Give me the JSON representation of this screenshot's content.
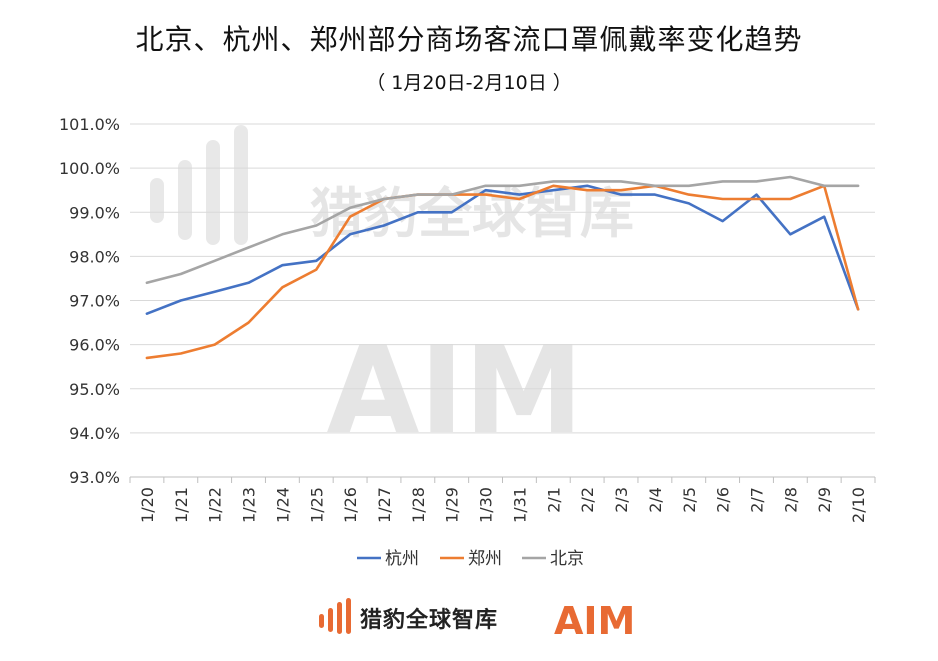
{
  "header": {
    "title": "北京、杭州、郑州部分商场客流口罩佩戴率变化趋势",
    "subtitle": "（ 1月20日-2月10日 ）"
  },
  "watermark": {
    "brand_cn": "猎豹全球智库",
    "brand_en": "AIM"
  },
  "footer": {
    "brand_cn": "猎豹全球智库",
    "brand_en": "AIM",
    "logo_icon": "cheetah-bars-icon"
  },
  "colors": {
    "hangzhou": "#4472C4",
    "zhengzhou": "#ED7D31",
    "beijing": "#A5A5A5",
    "grid": "#D9D9D9",
    "accent": "#E86A33"
  },
  "chart_data": {
    "type": "line",
    "title": "北京、杭州、郑州部分商场客流口罩佩戴率变化趋势",
    "subtitle": "（ 1月20日-2月10日 ）",
    "xlabel": "",
    "ylabel": "",
    "categories": [
      "1/20",
      "1/21",
      "1/22",
      "1/23",
      "1/24",
      "1/25",
      "1/26",
      "1/27",
      "1/28",
      "1/29",
      "1/30",
      "1/31",
      "2/1",
      "2/2",
      "2/3",
      "2/4",
      "2/5",
      "2/6",
      "2/7",
      "2/8",
      "2/9",
      "2/10"
    ],
    "y_ticks": [
      "93.0%",
      "94.0%",
      "95.0%",
      "96.0%",
      "97.0%",
      "98.0%",
      "99.0%",
      "100.0%",
      "101.0%"
    ],
    "ylim": [
      93.0,
      101.0
    ],
    "grid": true,
    "legend_position": "bottom",
    "series": [
      {
        "name": "杭州",
        "color": "#4472C4",
        "values": [
          96.7,
          97.0,
          97.2,
          97.4,
          97.8,
          97.9,
          98.5,
          98.7,
          99.0,
          99.0,
          99.5,
          99.4,
          99.5,
          99.6,
          99.4,
          99.4,
          99.2,
          98.8,
          99.4,
          98.5,
          98.9,
          96.8
        ]
      },
      {
        "name": "郑州",
        "color": "#ED7D31",
        "values": [
          95.7,
          95.8,
          96.0,
          96.5,
          97.3,
          97.7,
          98.9,
          99.3,
          99.4,
          99.4,
          99.4,
          99.3,
          99.6,
          99.5,
          99.5,
          99.6,
          99.4,
          99.3,
          99.3,
          99.3,
          99.6,
          96.8
        ]
      },
      {
        "name": "北京",
        "color": "#A5A5A5",
        "values": [
          97.4,
          97.6,
          97.9,
          98.2,
          98.5,
          98.7,
          99.1,
          99.3,
          99.4,
          99.4,
          99.6,
          99.6,
          99.7,
          99.7,
          99.7,
          99.6,
          99.6,
          99.7,
          99.7,
          99.8,
          99.6,
          99.6
        ]
      }
    ]
  }
}
